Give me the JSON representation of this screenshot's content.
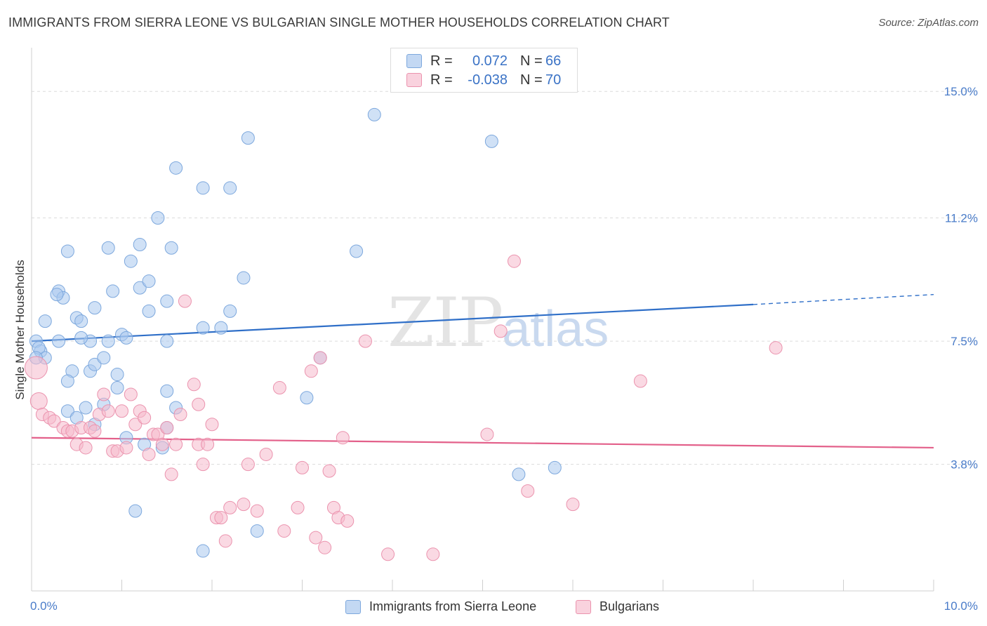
{
  "title": "IMMIGRANTS FROM SIERRA LEONE VS BULGARIAN SINGLE MOTHER HOUSEHOLDS CORRELATION CHART",
  "source": "Source: ZipAtlas.com",
  "watermark": {
    "part1": "ZIP",
    "part2": "atlas"
  },
  "legend_top": [
    {
      "r_label": "R =",
      "r_value": "0.072",
      "n_label": "N =",
      "n_value": "66",
      "color": "#aac8ef"
    },
    {
      "r_label": "R =",
      "r_value": "-0.038",
      "n_label": "N =",
      "n_value": "70",
      "color": "#f6b9cc"
    }
  ],
  "legend_bottom": [
    {
      "label": "Immigrants from Sierra Leone",
      "color": "#aac8ef"
    },
    {
      "label": "Bulgarians",
      "color": "#f6b9cc"
    }
  ],
  "chart_data": {
    "type": "scatter",
    "title": "IMMIGRANTS FROM SIERRA LEONE VS BULGARIAN SINGLE MOTHER HOUSEHOLDS CORRELATION CHART",
    "xlabel": "",
    "ylabel": "Single Mother Households",
    "xlim": [
      0,
      10
    ],
    "ylim": [
      0,
      16.1
    ],
    "x_tick_labels": [
      {
        "value": 0,
        "label": "0.0%"
      },
      {
        "value": 10,
        "label": "10.0%"
      }
    ],
    "y_tick_labels": [
      {
        "value": 3.8,
        "label": "3.8%"
      },
      {
        "value": 7.5,
        "label": "7.5%"
      },
      {
        "value": 11.2,
        "label": "11.2%"
      },
      {
        "value": 15.0,
        "label": "15.0%"
      }
    ],
    "grid": true,
    "series": [
      {
        "name": "Immigrants from Sierra Leone",
        "color": "#aac8ef",
        "stroke": "#7da8dd",
        "trend": {
          "x": [
            0,
            8
          ],
          "y": [
            7.5,
            8.6
          ],
          "dashed_to": [
            10,
            8.9
          ],
          "color": "#2f6fc8"
        },
        "points": [
          [
            0.05,
            7.5
          ],
          [
            0.1,
            7.2
          ],
          [
            0.15,
            7.0
          ],
          [
            0.08,
            7.3
          ],
          [
            0.05,
            7.0
          ],
          [
            0.15,
            8.1
          ],
          [
            0.3,
            9.0
          ],
          [
            0.35,
            8.8
          ],
          [
            0.28,
            8.9
          ],
          [
            0.4,
            10.2
          ],
          [
            0.3,
            7.5
          ],
          [
            0.5,
            8.2
          ],
          [
            0.55,
            8.1
          ],
          [
            0.65,
            7.5
          ],
          [
            0.7,
            8.5
          ],
          [
            0.85,
            7.5
          ],
          [
            0.9,
            9.0
          ],
          [
            0.85,
            10.3
          ],
          [
            0.95,
            6.5
          ],
          [
            1.0,
            7.7
          ],
          [
            1.05,
            7.6
          ],
          [
            1.1,
            9.9
          ],
          [
            1.2,
            10.4
          ],
          [
            1.2,
            9.1
          ],
          [
            1.3,
            9.3
          ],
          [
            1.3,
            8.4
          ],
          [
            1.4,
            11.2
          ],
          [
            1.5,
            8.7
          ],
          [
            1.55,
            10.3
          ],
          [
            1.5,
            7.5
          ],
          [
            1.6,
            12.7
          ],
          [
            1.9,
            12.1
          ],
          [
            1.9,
            7.9
          ],
          [
            2.2,
            12.1
          ],
          [
            2.1,
            7.9
          ],
          [
            2.2,
            8.4
          ],
          [
            2.35,
            9.4
          ],
          [
            2.4,
            13.6
          ],
          [
            3.8,
            14.3
          ],
          [
            5.1,
            13.5
          ],
          [
            3.6,
            10.2
          ],
          [
            3.2,
            7.0
          ],
          [
            3.05,
            5.8
          ],
          [
            0.4,
            5.4
          ],
          [
            0.5,
            5.2
          ],
          [
            0.6,
            5.5
          ],
          [
            0.7,
            5.0
          ],
          [
            0.8,
            5.6
          ],
          [
            0.95,
            6.1
          ],
          [
            1.05,
            4.6
          ],
          [
            1.5,
            6.0
          ],
          [
            1.6,
            5.5
          ],
          [
            1.5,
            4.9
          ],
          [
            1.45,
            4.3
          ],
          [
            0.65,
            6.6
          ],
          [
            0.7,
            6.8
          ],
          [
            0.45,
            6.6
          ],
          [
            0.4,
            6.3
          ],
          [
            0.8,
            7.0
          ],
          [
            1.15,
            2.4
          ],
          [
            1.9,
            1.2
          ],
          [
            2.5,
            1.8
          ],
          [
            5.4,
            3.5
          ],
          [
            5.8,
            3.7
          ],
          [
            1.25,
            4.4
          ],
          [
            0.55,
            7.6
          ]
        ]
      },
      {
        "name": "Bulgarians",
        "color": "#f6b9cc",
        "stroke": "#eb93ae",
        "trend": {
          "x": [
            0,
            10
          ],
          "y": [
            4.6,
            4.3
          ],
          "color": "#e3608a"
        },
        "points": [
          [
            0.05,
            6.7
          ],
          [
            0.08,
            5.7
          ],
          [
            0.12,
            5.3
          ],
          [
            0.2,
            5.2
          ],
          [
            0.25,
            5.1
          ],
          [
            0.35,
            4.9
          ],
          [
            0.4,
            4.8
          ],
          [
            0.45,
            4.8
          ],
          [
            0.5,
            4.4
          ],
          [
            0.55,
            4.9
          ],
          [
            0.6,
            4.3
          ],
          [
            0.65,
            4.9
          ],
          [
            0.7,
            4.8
          ],
          [
            0.75,
            5.3
          ],
          [
            0.8,
            5.9
          ],
          [
            0.85,
            5.4
          ],
          [
            0.9,
            4.2
          ],
          [
            0.95,
            4.2
          ],
          [
            1.0,
            5.4
          ],
          [
            1.05,
            4.3
          ],
          [
            1.1,
            5.9
          ],
          [
            1.15,
            5.0
          ],
          [
            1.2,
            5.4
          ],
          [
            1.25,
            5.2
          ],
          [
            1.3,
            4.1
          ],
          [
            1.35,
            4.7
          ],
          [
            1.4,
            4.7
          ],
          [
            1.45,
            4.4
          ],
          [
            1.5,
            4.9
          ],
          [
            1.55,
            3.5
          ],
          [
            1.6,
            4.4
          ],
          [
            1.65,
            5.3
          ],
          [
            1.7,
            8.7
          ],
          [
            1.8,
            6.2
          ],
          [
            1.85,
            4.4
          ],
          [
            1.85,
            5.6
          ],
          [
            1.9,
            3.8
          ],
          [
            1.95,
            4.4
          ],
          [
            2.0,
            5.0
          ],
          [
            2.05,
            2.2
          ],
          [
            2.1,
            2.2
          ],
          [
            2.15,
            1.5
          ],
          [
            2.2,
            2.5
          ],
          [
            2.35,
            2.6
          ],
          [
            2.4,
            3.8
          ],
          [
            2.5,
            2.4
          ],
          [
            2.6,
            4.1
          ],
          [
            2.75,
            6.1
          ],
          [
            2.8,
            1.8
          ],
          [
            2.95,
            2.5
          ],
          [
            3.0,
            3.7
          ],
          [
            3.1,
            6.6
          ],
          [
            3.15,
            1.6
          ],
          [
            3.2,
            7.0
          ],
          [
            3.25,
            1.3
          ],
          [
            3.3,
            3.6
          ],
          [
            3.35,
            2.5
          ],
          [
            3.45,
            4.6
          ],
          [
            3.4,
            2.2
          ],
          [
            3.5,
            2.1
          ],
          [
            3.7,
            7.5
          ],
          [
            3.95,
            1.1
          ],
          [
            4.45,
            1.1
          ],
          [
            5.05,
            4.7
          ],
          [
            5.2,
            7.8
          ],
          [
            5.35,
            9.9
          ],
          [
            5.5,
            3.0
          ],
          [
            6.0,
            2.6
          ],
          [
            6.75,
            6.3
          ],
          [
            8.25,
            7.3
          ]
        ]
      }
    ]
  }
}
